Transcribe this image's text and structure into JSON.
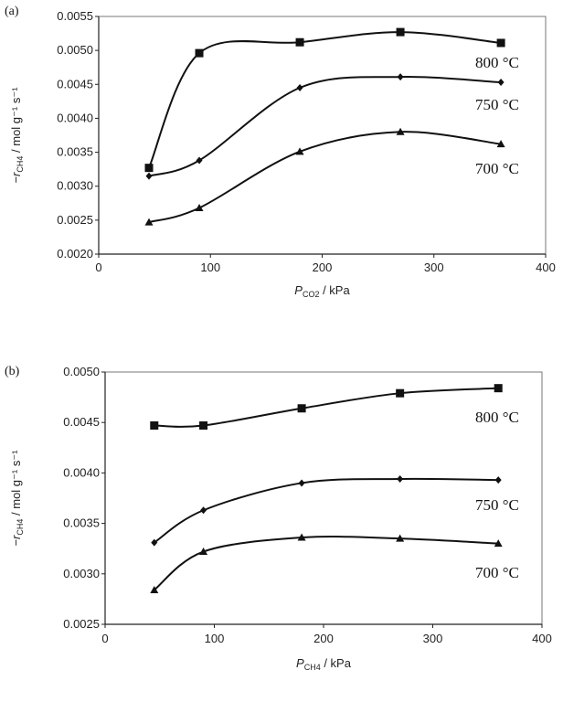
{
  "chart_data": [
    {
      "type": "line",
      "panel_label": "(a)",
      "xlabel_main": "P",
      "xlabel_sub": "CO2",
      "xlabel_unit": " / kPa",
      "ylabel": "−r",
      "ylabel_sub": "CH4",
      "ylabel_unit": " / mol g⁻¹ s⁻¹",
      "xlim": [
        0,
        400
      ],
      "ylim": [
        0.002,
        0.0055
      ],
      "xticks": [
        0,
        100,
        200,
        300,
        400
      ],
      "yticks": [
        "0.0020",
        "0.0025",
        "0.0030",
        "0.0035",
        "0.0040",
        "0.0045",
        "0.0050",
        "0.0055"
      ],
      "x": [
        45,
        90,
        180,
        270,
        360
      ],
      "series": [
        {
          "name": "800 °C",
          "marker": "square",
          "values": [
            0.00327,
            0.00496,
            0.00512,
            0.00527,
            0.00511
          ]
        },
        {
          "name": "750 °C",
          "marker": "diamond",
          "values": [
            0.00315,
            0.00338,
            0.00445,
            0.00461,
            0.00453
          ]
        },
        {
          "name": "700 °C",
          "marker": "triangle",
          "values": [
            0.00247,
            0.00268,
            0.00351,
            0.0038,
            0.00362
          ]
        }
      ]
    },
    {
      "type": "line",
      "panel_label": "(b)",
      "xlabel_main": "P",
      "xlabel_sub": "CH4",
      "xlabel_unit": " / kPa",
      "ylabel": "−r",
      "ylabel_sub": "CH4",
      "ylabel_unit": " / mol g⁻¹ s⁻¹",
      "xlim": [
        0,
        400
      ],
      "ylim": [
        0.0025,
        0.005
      ],
      "xticks": [
        0,
        100,
        200,
        300,
        400
      ],
      "yticks": [
        "0.0025",
        "0.0030",
        "0.0035",
        "0.0040",
        "0.0045",
        "0.0050"
      ],
      "x": [
        45,
        90,
        180,
        270,
        360
      ],
      "series": [
        {
          "name": "800 °C",
          "marker": "square",
          "values": [
            0.00447,
            0.00447,
            0.00464,
            0.00479,
            0.00484
          ]
        },
        {
          "name": "750 °C",
          "marker": "diamond",
          "values": [
            0.00331,
            0.00363,
            0.0039,
            0.00394,
            0.00393
          ]
        },
        {
          "name": "700 °C",
          "marker": "triangle",
          "values": [
            0.00284,
            0.00322,
            0.00336,
            0.00335,
            0.0033
          ]
        }
      ]
    }
  ]
}
